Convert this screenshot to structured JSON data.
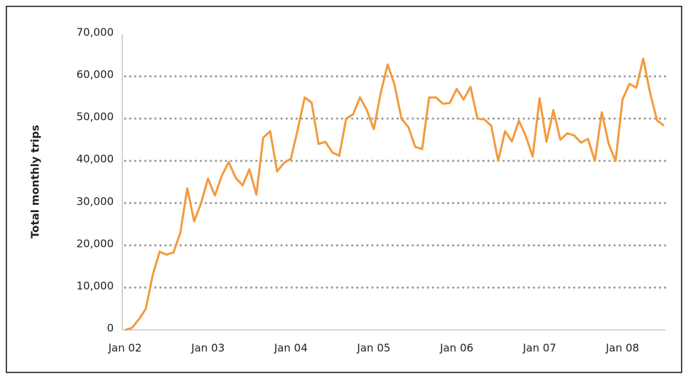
{
  "chart_data": {
    "type": "line",
    "y_label": "Total monthly trips",
    "categories": [
      "Jan 02",
      null,
      null,
      null,
      null,
      null,
      null,
      null,
      null,
      null,
      null,
      null,
      "Jan 03",
      null,
      null,
      null,
      null,
      null,
      null,
      null,
      null,
      null,
      null,
      null,
      "Jan 04",
      null,
      null,
      null,
      null,
      null,
      null,
      null,
      null,
      null,
      null,
      null,
      "Jan 05",
      null,
      null,
      null,
      null,
      null,
      null,
      null,
      null,
      null,
      null,
      null,
      "Jan 06",
      null,
      null,
      null,
      null,
      null,
      null,
      null,
      null,
      null,
      null,
      null,
      "Jan 07",
      null,
      null,
      null,
      null,
      null,
      null,
      null,
      null,
      null,
      null,
      null,
      "Jan 08",
      null,
      null,
      null,
      null,
      null,
      null
    ],
    "values": [
      0,
      500,
      2500,
      5000,
      13000,
      18500,
      17800,
      18300,
      23000,
      33500,
      25700,
      30000,
      35800,
      31800,
      36500,
      39700,
      36000,
      34200,
      38000,
      32000,
      45500,
      47000,
      37500,
      39500,
      40500,
      47500,
      55000,
      53800,
      44000,
      44500,
      42000,
      41200,
      50000,
      51000,
      55000,
      52000,
      47500,
      56000,
      62800,
      58000,
      50000,
      48000,
      43300,
      42800,
      55000,
      55000,
      53500,
      53700,
      57000,
      54500,
      57500,
      50000,
      49800,
      48300,
      40000,
      47000,
      44600,
      49500,
      45900,
      41000,
      54800,
      44500,
      52000,
      45000,
      46500,
      46000,
      44300,
      45200,
      40000,
      51500,
      44000,
      40000,
      54500,
      58200,
      57300,
      64200,
      56000,
      49600,
      48300
    ],
    "color": "#f39a3c",
    "ylim": [
      0,
      70000
    ],
    "yticks": [
      0,
      {
        "value": 10000,
        "label": "10,000"
      },
      {
        "value": 20000,
        "label": "20,000"
      },
      {
        "value": 30000,
        "label": "30,000"
      },
      {
        "value": 40000,
        "label": "40,000"
      },
      {
        "value": 50000,
        "label": "50,000"
      },
      {
        "value": 60000,
        "label": "60,000"
      },
      {
        "value": 70000,
        "label": "70,000"
      }
    ],
    "grid": true
  }
}
